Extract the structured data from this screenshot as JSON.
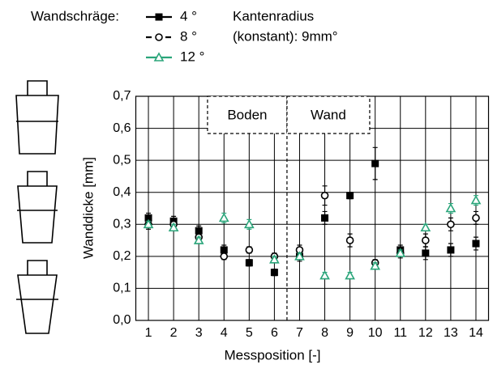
{
  "chart_data": {
    "type": "line",
    "y_label": "Wanddicke  [mm]",
    "x_label": "Messposition  [-]",
    "legend_title": "Wandschräge:",
    "annotation_lines": [
      "Kantenradius",
      "(konstant): 9mm°"
    ],
    "regions": [
      {
        "label": "Boden"
      },
      {
        "label": "Wand"
      }
    ],
    "divider_x": 6.5,
    "x": [
      1,
      2,
      3,
      4,
      5,
      6,
      7,
      8,
      9,
      10,
      11,
      12,
      13,
      14
    ],
    "xlim": [
      0.5,
      14.5
    ],
    "xticks": [
      1,
      2,
      3,
      4,
      5,
      6,
      7,
      8,
      9,
      10,
      11,
      12,
      13,
      14
    ],
    "ylim": [
      0,
      0.7
    ],
    "yticks": [
      {
        "value": 0,
        "label": "0,0"
      },
      {
        "value": 0.1,
        "label": "0,1"
      },
      {
        "value": 0.2,
        "label": "0,2"
      },
      {
        "value": 0.3,
        "label": "0,3"
      },
      {
        "value": 0.4,
        "label": "0,4"
      },
      {
        "value": 0.5,
        "label": "0,5"
      },
      {
        "value": 0.6,
        "label": "0,6"
      },
      {
        "value": 0.7,
        "label": "0,7"
      }
    ],
    "grid": true,
    "series": [
      {
        "name": "4 °",
        "color": "#000000",
        "linestyle": "solid",
        "marker": "square",
        "values": [
          0.32,
          0.31,
          0.28,
          0.22,
          0.18,
          0.15,
          0.2,
          0.32,
          0.39,
          0.49,
          0.22,
          0.21,
          0.22,
          0.24
        ],
        "errors": [
          0.015,
          0.015,
          0.015,
          0.015,
          0.01,
          0.01,
          0.015,
          0.02,
          0.01,
          0.05,
          0.015,
          0.02,
          0.02,
          0.02
        ]
      },
      {
        "name": "8 °",
        "color": "#000000",
        "linestyle": "dashed",
        "marker": "circle",
        "values": [
          0.3,
          0.3,
          0.26,
          0.2,
          0.22,
          0.2,
          0.22,
          0.39,
          0.25,
          0.18,
          0.21,
          0.25,
          0.3,
          0.32
        ],
        "errors": [
          0.015,
          0.01,
          0.015,
          0.01,
          0.01,
          0.01,
          0.015,
          0.03,
          0.02,
          0.01,
          0.015,
          0.02,
          0.02,
          0.02
        ]
      },
      {
        "name": "12 °",
        "color": "#2aa57a",
        "linestyle": "solid",
        "marker": "triangle",
        "values": [
          0.3,
          0.29,
          0.25,
          0.32,
          0.3,
          0.19,
          0.2,
          0.14,
          0.14,
          0.17,
          0.21,
          0.29,
          0.35,
          0.375
        ],
        "errors": [
          0.01,
          0.01,
          0.01,
          0.015,
          0.015,
          0.01,
          0.01,
          0.01,
          0.01,
          0.01,
          0.01,
          0.01,
          0.015,
          0.015
        ]
      }
    ]
  }
}
